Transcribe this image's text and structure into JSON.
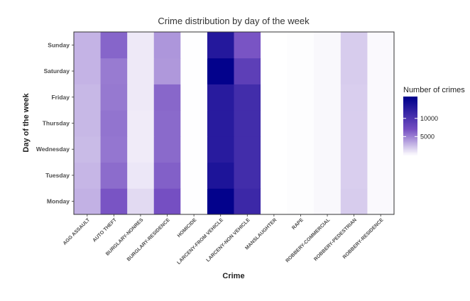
{
  "chart_data": {
    "type": "heatmap",
    "title": "Crime distribution by day of the week",
    "xlabel": "Crime",
    "ylabel": "Day of the week",
    "x_categories": [
      "AGG ASSAULT",
      "AUTO THEFT",
      "BURGLARY-NONRES",
      "BURGLARY-RESIDENCE",
      "HOMICIDE",
      "LARCENY-FROM VEHICLE",
      "LARCENY-NON VEHICLE",
      "MANSLAUGHTER",
      "RAPE",
      "ROBBERY-COMMERCIAL",
      "ROBBERY-PEDESTRIAN",
      "ROBBERY-RESIDENCE"
    ],
    "y_categories": [
      "Monday",
      "Tuesday",
      "Wednesday",
      "Thursday",
      "Friday",
      "Saturday",
      "Sunday"
    ],
    "values": [
      [
        3200,
        7000,
        1500,
        7200,
        50,
        15800,
        11500,
        10,
        100,
        300,
        2100,
        250
      ],
      [
        3000,
        6000,
        1000,
        6500,
        40,
        13800,
        11000,
        10,
        100,
        300,
        2000,
        250
      ],
      [
        2800,
        5600,
        800,
        6100,
        40,
        13000,
        11000,
        10,
        100,
        300,
        2000,
        250
      ],
      [
        2900,
        5700,
        800,
        6100,
        40,
        13000,
        11000,
        10,
        100,
        300,
        2000,
        250
      ],
      [
        2900,
        5500,
        900,
        6200,
        40,
        13000,
        11000,
        10,
        100,
        300,
        2000,
        250
      ],
      [
        3100,
        5400,
        900,
        4200,
        50,
        15800,
        9000,
        10,
        100,
        300,
        2100,
        250
      ],
      [
        3100,
        6300,
        900,
        4300,
        40,
        13300,
        7000,
        10,
        100,
        300,
        2100,
        250
      ]
    ],
    "color_range": [
      "#FFFFFF",
      "#00008B"
    ],
    "value_range": [
      0,
      16000
    ],
    "legend": {
      "title": "Number of crimes",
      "ticks": [
        5000,
        10000
      ],
      "position": "right"
    },
    "grid": false
  }
}
